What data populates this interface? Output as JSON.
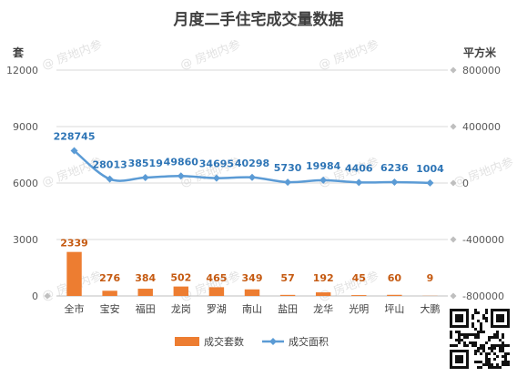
{
  "chart_data": {
    "type": "bar",
    "title": "月度二手住宅成交量数据",
    "categories": [
      "全市",
      "宝安",
      "福田",
      "龙岗",
      "罗湖",
      "南山",
      "盐田",
      "龙华",
      "光明",
      "坪山",
      "大鹏"
    ],
    "left_axis": {
      "unit": "套",
      "ylim": [
        0,
        12000
      ],
      "ticks": [
        "0",
        "3000",
        "6000",
        "9000",
        "12000"
      ]
    },
    "right_axis": {
      "unit": "平方米",
      "ylim": [
        -800000,
        800000
      ],
      "ticks": [
        "-800000",
        "-400000",
        "0",
        "400000",
        "800000"
      ]
    },
    "series": [
      {
        "name": "成交套数",
        "type": "bar",
        "axis": "left",
        "color": "#ed7d31",
        "values": [
          2339,
          276,
          384,
          502,
          465,
          349,
          57,
          192,
          45,
          60,
          9
        ],
        "labels": [
          "2339",
          "276",
          "384",
          "502",
          "465",
          "349",
          "57",
          "192",
          "45",
          "60",
          "9"
        ]
      },
      {
        "name": "成交面积",
        "type": "line",
        "axis": "right",
        "color": "#5b9bd5",
        "values": [
          228745,
          28013,
          38519,
          49860,
          34695,
          40298,
          5730,
          19984,
          4406,
          6236,
          1004
        ],
        "labels": [
          "228745",
          "28013",
          "38519",
          "49860",
          "34695",
          "40298",
          "5730",
          "19984",
          "4406",
          "6236",
          "1004"
        ]
      }
    ],
    "grid": true,
    "legend_position": "bottom"
  },
  "watermark": {
    "text": "房地内参",
    "icon": "at-sign-icon"
  },
  "qr_code": {
    "icon": "qr-code-icon"
  }
}
